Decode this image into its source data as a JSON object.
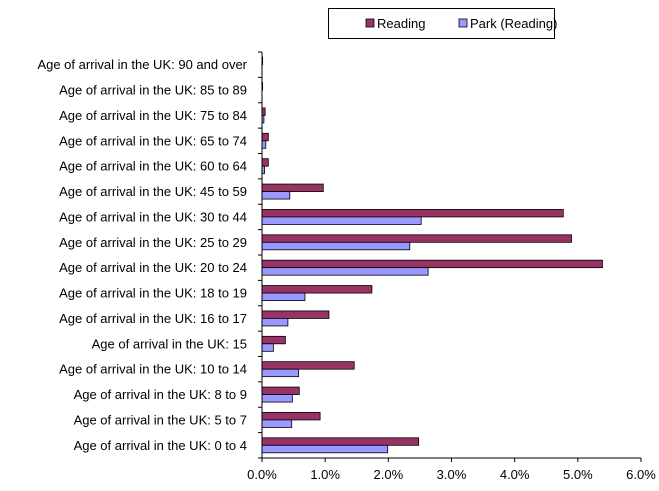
{
  "chart_data": {
    "type": "bar",
    "orientation": "horizontal",
    "categories": [
      "Age of arrival in the UK: 90 and over",
      "Age of arrival in the UK: 85 to 89",
      "Age of arrival in the UK: 75 to 84",
      "Age of arrival in the UK: 65 to 74",
      "Age of arrival in the UK: 60 to 64",
      "Age of arrival in the UK: 45 to 59",
      "Age of arrival in the UK: 30 to 44",
      "Age of arrival in the UK: 25 to 29",
      "Age of arrival in the UK: 20 to 24",
      "Age of arrival in the UK: 18 to 19",
      "Age of arrival in the UK: 16 to 17",
      "Age of arrival in the UK: 15",
      "Age of arrival in the UK: 10 to 14",
      "Age of arrival in the UK: 8 to 9",
      "Age of arrival in the UK: 5 to 7",
      "Age of arrival in the UK: 0 to 4"
    ],
    "series": [
      {
        "name": "Reading",
        "color": "#993366",
        "values": [
          0.01,
          0.01,
          0.05,
          0.1,
          0.1,
          0.97,
          4.77,
          4.9,
          5.39,
          1.74,
          1.06,
          0.37,
          1.46,
          0.59,
          0.92,
          2.48
        ]
      },
      {
        "name": "Park (Reading)",
        "color": "#9999ff",
        "values": [
          0.0,
          0.0,
          0.03,
          0.06,
          0.04,
          0.44,
          2.52,
          2.34,
          2.63,
          0.68,
          0.41,
          0.18,
          0.58,
          0.48,
          0.47,
          1.99
        ]
      }
    ],
    "xlim": [
      0,
      6
    ],
    "xticks": [
      "0.0%",
      "1.0%",
      "2.0%",
      "3.0%",
      "4.0%",
      "5.0%",
      "6.0%"
    ],
    "tick_values": [
      0,
      1,
      2,
      3,
      4,
      5,
      6
    ],
    "legend_position": "top-right",
    "grid": false
  }
}
